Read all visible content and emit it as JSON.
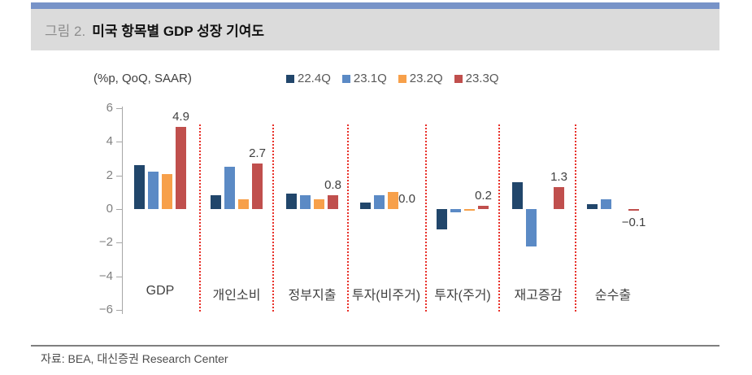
{
  "figure": {
    "label": "그림 2.",
    "title": "미국 항목별 GDP 성장 기여도",
    "unit_label": "(%p, QoQ, SAAR)",
    "source": "자료: BEA, 대신증권 Research Center"
  },
  "colors": {
    "accent_bar": "#7793c8",
    "title_band_bg": "#dbdbdb",
    "figure_label_text": "#8d8d8d",
    "figure_title_text": "#111111",
    "separator_red": "#e8312a",
    "axis_gray": "#a6a6a6"
  },
  "chart_data": {
    "type": "bar",
    "title": "미국 항목별 GDP 성장 기여도",
    "xlabel": "",
    "ylabel": "(%p, QoQ, SAAR)",
    "ylim": [
      -6,
      6
    ],
    "yticks": [
      6,
      4,
      2,
      0,
      -2,
      -4,
      -6
    ],
    "grid": false,
    "legend_position": "top",
    "categories": [
      "GDP",
      "개인소비",
      "정부지출",
      "투자(비주거)",
      "투자(주거)",
      "재고증감",
      "순수출"
    ],
    "series": [
      {
        "name": "22.4Q",
        "color": "#21466b",
        "values": [
          2.6,
          0.8,
          0.9,
          0.4,
          -1.2,
          1.6,
          0.3
        ]
      },
      {
        "name": "23.1Q",
        "color": "#5b8ac5",
        "values": [
          2.2,
          2.5,
          0.8,
          0.8,
          -0.2,
          -2.2,
          0.6
        ]
      },
      {
        "name": "23.2Q",
        "color": "#f7a04a",
        "values": [
          2.1,
          0.6,
          0.6,
          1.0,
          -0.1,
          0.0,
          0.0
        ]
      },
      {
        "name": "23.3Q",
        "color": "#c04f4d",
        "values": [
          4.9,
          2.7,
          0.8,
          0.0,
          0.2,
          1.3,
          -0.1
        ]
      }
    ],
    "annotations": [
      "4.9",
      "2.7",
      "0.8",
      "0.0",
      "0.2",
      "1.3",
      "−0.1"
    ]
  }
}
